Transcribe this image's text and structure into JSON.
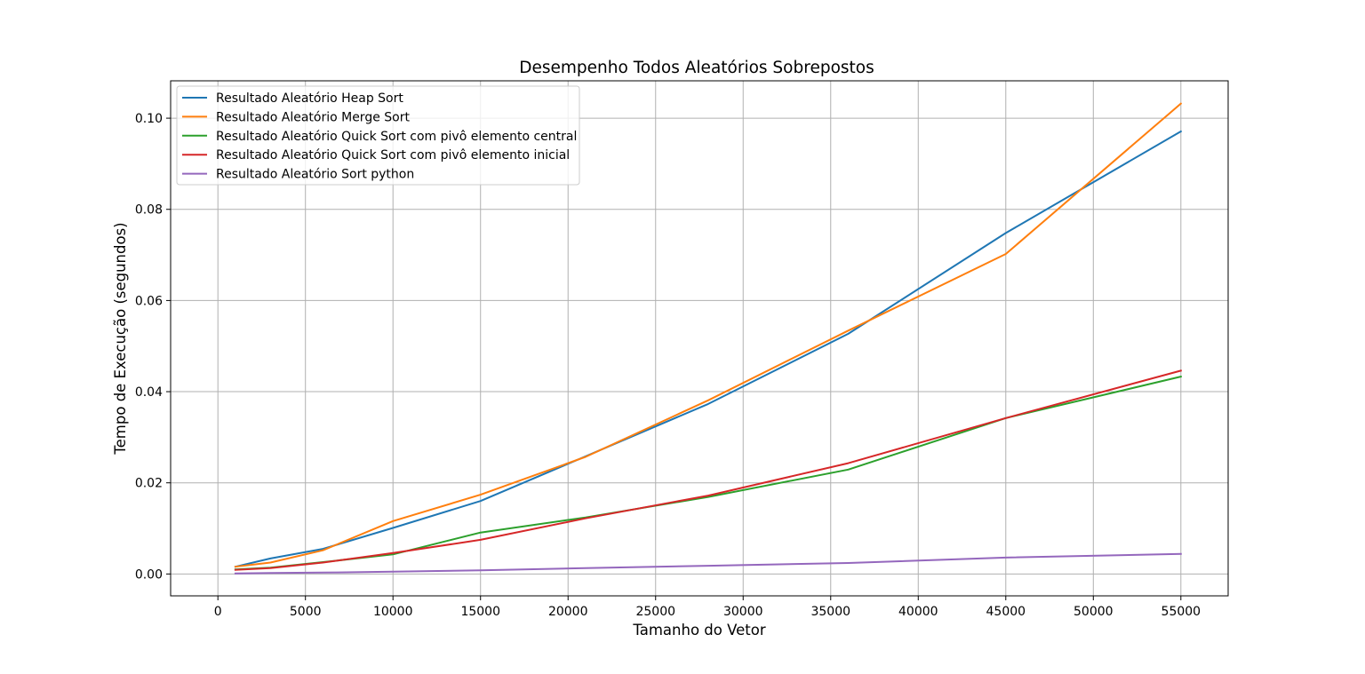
{
  "chart_data": {
    "type": "line",
    "title": "Desempenho Todos Aleatórios Sobrepostos",
    "xlabel": "Tamanho do Vetor",
    "ylabel": "Tempo de Execução (segundos)",
    "xlim": [
      -2700,
      57700
    ],
    "ylim": [
      -0.0048,
      0.1082
    ],
    "xticks": [
      0,
      5000,
      10000,
      15000,
      20000,
      25000,
      30000,
      35000,
      40000,
      45000,
      50000,
      55000
    ],
    "yticks": [
      0.0,
      0.02,
      0.04,
      0.06,
      0.08,
      0.1
    ],
    "xtick_labels": [
      "0",
      "5000",
      "10000",
      "15000",
      "20000",
      "25000",
      "30000",
      "35000",
      "40000",
      "45000",
      "50000",
      "55000"
    ],
    "ytick_labels": [
      "0.00",
      "0.02",
      "0.04",
      "0.06",
      "0.08",
      "0.10"
    ],
    "grid": true,
    "legend_position": "top-left",
    "x": [
      1000,
      3000,
      6000,
      10000,
      15000,
      21000,
      28000,
      36000,
      45000,
      55000
    ],
    "series": [
      {
        "name": "Resultado Aleatório Heap Sort",
        "color": "#1f77b4",
        "values": [
          0.0016,
          0.0034,
          0.0055,
          0.0101,
          0.016,
          0.0258,
          0.0373,
          0.0527,
          0.0748,
          0.0971
        ]
      },
      {
        "name": "Resultado Aleatório Merge Sort",
        "color": "#ff7f0e",
        "values": [
          0.0016,
          0.0025,
          0.0052,
          0.0116,
          0.0174,
          0.0257,
          0.0381,
          0.0534,
          0.0702,
          0.1032
        ]
      },
      {
        "name": "Resultado Aleatório Quick Sort com pivô elemento central",
        "color": "#2ca02c",
        "values": [
          0.001,
          0.0014,
          0.0026,
          0.0043,
          0.0091,
          0.0124,
          0.0169,
          0.0229,
          0.0342,
          0.0433
        ]
      },
      {
        "name": "Resultado Aleatório Quick Sort com pivô elemento inicial",
        "color": "#d62728",
        "values": [
          0.0009,
          0.0013,
          0.0025,
          0.0046,
          0.0075,
          0.0122,
          0.0172,
          0.0243,
          0.0342,
          0.0446
        ]
      },
      {
        "name": "Resultado Aleatório Sort python",
        "color": "#9467bd",
        "values": [
          0.0001,
          0.0002,
          0.0003,
          0.0005,
          0.0008,
          0.0013,
          0.0018,
          0.0024,
          0.0036,
          0.0044
        ]
      }
    ]
  }
}
